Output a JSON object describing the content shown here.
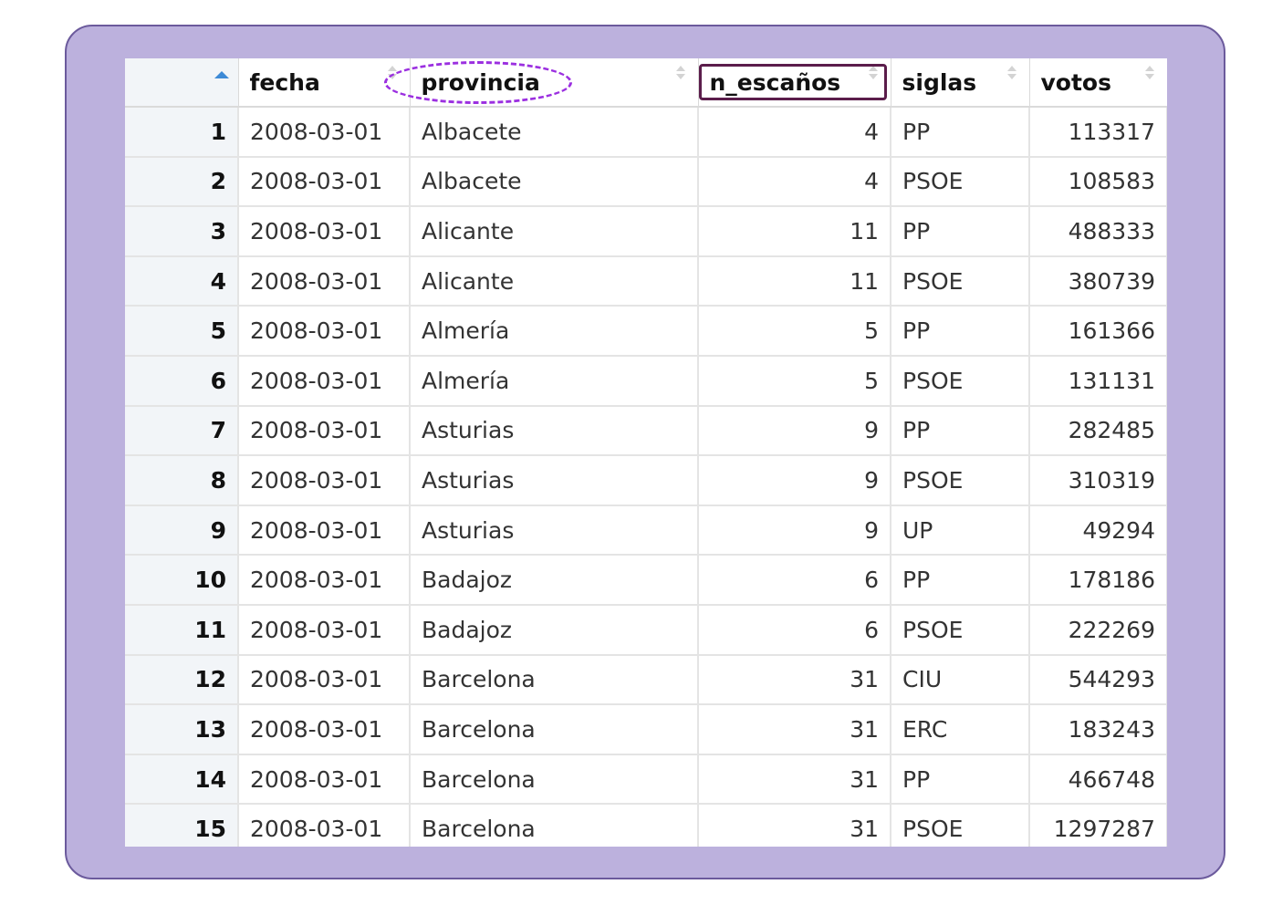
{
  "table": {
    "columns": [
      {
        "label": "",
        "sort": "ascending",
        "align": "right"
      },
      {
        "label": "fecha",
        "sort": "none",
        "align": "left"
      },
      {
        "label": "provincia",
        "sort": "none",
        "align": "left"
      },
      {
        "label": "n_escaños",
        "sort": "none",
        "align": "right"
      },
      {
        "label": "siglas",
        "sort": "none",
        "align": "left"
      },
      {
        "label": "votos",
        "sort": "none",
        "align": "right"
      }
    ],
    "rows": [
      [
        "1",
        "2008-03-01",
        "Albacete",
        "4",
        "PP",
        "113317"
      ],
      [
        "2",
        "2008-03-01",
        "Albacete",
        "4",
        "PSOE",
        "108583"
      ],
      [
        "3",
        "2008-03-01",
        "Alicante",
        "11",
        "PP",
        "488333"
      ],
      [
        "4",
        "2008-03-01",
        "Alicante",
        "11",
        "PSOE",
        "380739"
      ],
      [
        "5",
        "2008-03-01",
        "Almería",
        "5",
        "PP",
        "161366"
      ],
      [
        "6",
        "2008-03-01",
        "Almería",
        "5",
        "PSOE",
        "131131"
      ],
      [
        "7",
        "2008-03-01",
        "Asturias",
        "9",
        "PP",
        "282485"
      ],
      [
        "8",
        "2008-03-01",
        "Asturias",
        "9",
        "PSOE",
        "310319"
      ],
      [
        "9",
        "2008-03-01",
        "Asturias",
        "9",
        "UP",
        "49294"
      ],
      [
        "10",
        "2008-03-01",
        "Badajoz",
        "6",
        "PP",
        "178186"
      ],
      [
        "11",
        "2008-03-01",
        "Badajoz",
        "6",
        "PSOE",
        "222269"
      ],
      [
        "12",
        "2008-03-01",
        "Barcelona",
        "31",
        "CIU",
        "544293"
      ],
      [
        "13",
        "2008-03-01",
        "Barcelona",
        "31",
        "ERC",
        "183243"
      ],
      [
        "14",
        "2008-03-01",
        "Barcelona",
        "31",
        "PP",
        "466748"
      ],
      [
        "15",
        "2008-03-01",
        "Barcelona",
        "31",
        "PSOE",
        "1297287"
      ]
    ]
  },
  "highlights": {
    "provincia_marker_color": "#9b2fe0",
    "n_escanos_marker_color": "#5b1d4b"
  },
  "colors": {
    "frame_background": "#bcb1dd",
    "frame_border": "#6b5a9c",
    "rownum_background": "#f2f5f8",
    "active_sort_arrow": "#3d8ad6"
  }
}
